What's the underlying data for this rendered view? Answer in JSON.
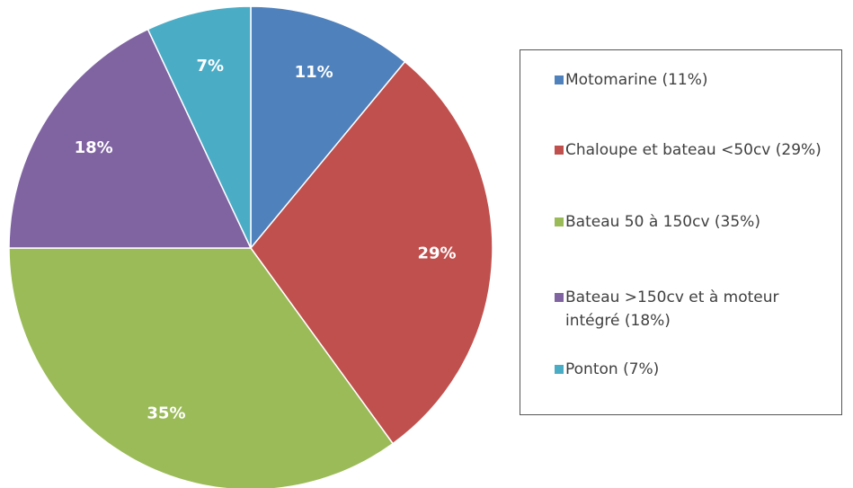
{
  "chart_data": {
    "type": "pie",
    "categories": [
      "Motomarine (11%)",
      "Chaloupe et bateau <50cv (29%)",
      "Bateau 50 à 150cv (35%)",
      "Bateau >150cv et à moteur intégré (18%)",
      "Ponton (7%)"
    ],
    "values": [
      11,
      29,
      35,
      18,
      7
    ],
    "value_labels": [
      "11%",
      "29%",
      "35%",
      "18%",
      "7%"
    ],
    "colors": [
      "#4f81bd",
      "#c0504d",
      "#9bbb59",
      "#8064a2",
      "#4bacc6"
    ],
    "legend": "right"
  }
}
